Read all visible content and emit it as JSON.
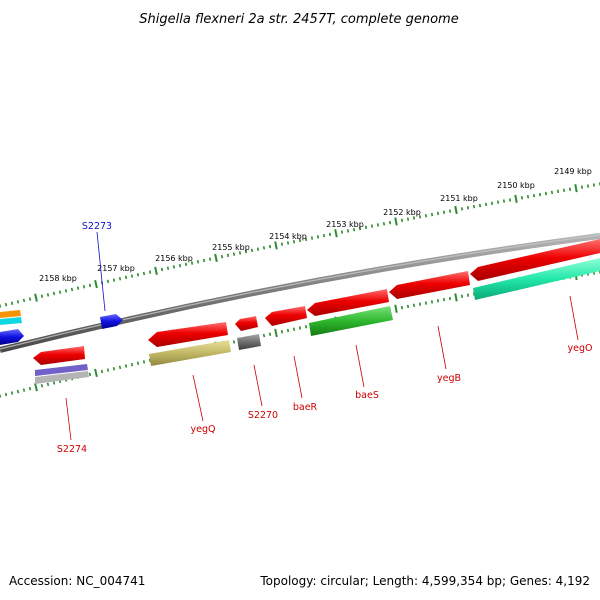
{
  "title": "Shigella flexneri 2a str. 2457T, complete genome",
  "footer": {
    "accession": "Accession: NC_004741",
    "topology": "Topology: circular; Length: 4,599,354 bp; Genes: 4,192"
  },
  "scale": {
    "unit": "kbp",
    "tick_labels": [
      "2149 kbp",
      "2150 kbp",
      "2151 kbp",
      "2152 kbp",
      "2153 kbp",
      "2154 kbp",
      "2155 kbp",
      "2156 kbp",
      "2157 kbp",
      "2158 kbp"
    ]
  },
  "genes": [
    {
      "label": "S2273",
      "strand": "forward",
      "color": "#1010cc"
    },
    {
      "label": "S2274",
      "strand": "reverse",
      "color": "#cc0000"
    },
    {
      "label": "yegQ",
      "strand": "reverse",
      "color": "#cc0000"
    },
    {
      "label": "S2270",
      "strand": "reverse",
      "color": "#cc0000"
    },
    {
      "label": "baeR",
      "strand": "reverse",
      "color": "#cc0000"
    },
    {
      "label": "baeS",
      "strand": "reverse",
      "color": "#cc0000"
    },
    {
      "label": "yegB",
      "strand": "reverse",
      "color": "#cc0000"
    },
    {
      "label": "yegO",
      "strand": "reverse",
      "color": "#cc0000"
    }
  ],
  "colors": {
    "gene_red": "#e80000",
    "tick_green": "#2e8b2e",
    "backbone": "#808080"
  }
}
